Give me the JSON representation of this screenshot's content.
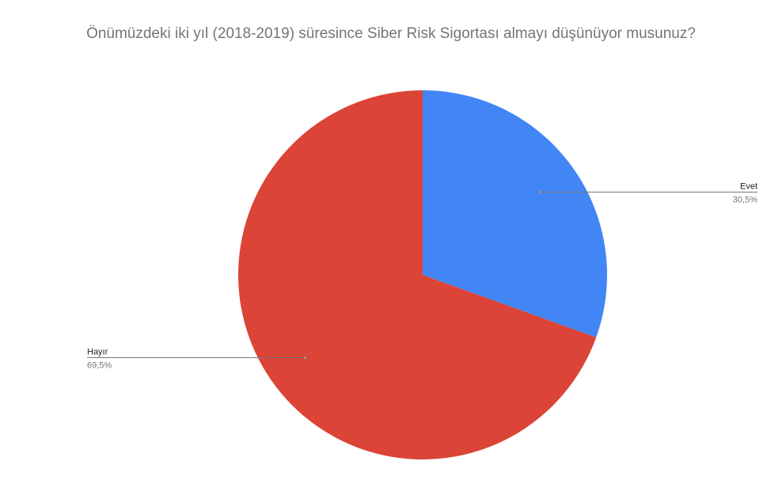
{
  "chart_data": {
    "type": "pie",
    "title": "Önümüzdeki iki yıl (2018-2019) süresince Siber Risk Sigortası almayı düşünüyor musunuz?",
    "slices": [
      {
        "label": "Evet",
        "value": 30.5,
        "value_label": "30,5%",
        "color": "#4285f4"
      },
      {
        "label": "Hayır",
        "value": 69.5,
        "value_label": "69,5%",
        "color": "#db4437"
      }
    ],
    "start_angle": "12 o'clock",
    "direction": "clockwise"
  }
}
